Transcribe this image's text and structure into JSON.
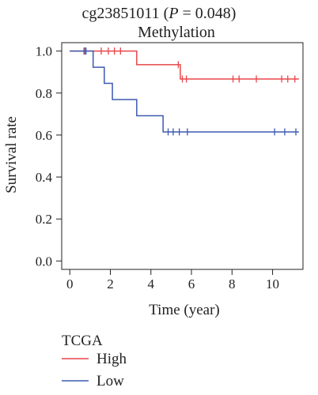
{
  "chart_data": {
    "type": "line",
    "title_prefix": "cg23851011 (",
    "title_p": "P",
    "title_suffix": " = 0.048)",
    "subtitle": "Methylation",
    "xlabel": "Time (year)",
    "ylabel": "Survival rate",
    "xlim": [
      -0.4,
      11.5
    ],
    "ylim": [
      -0.04,
      1.04
    ],
    "xticks": [
      0,
      2,
      4,
      6,
      8,
      10
    ],
    "yticks": [
      0.0,
      0.2,
      0.4,
      0.6,
      0.8,
      1.0
    ],
    "xtick_labels": [
      "0",
      "2",
      "4",
      "6",
      "8",
      "10"
    ],
    "ytick_labels": [
      "0.0",
      "0.2",
      "0.4",
      "0.6",
      "0.8",
      "1.0"
    ],
    "grid": false,
    "legend": {
      "title": "TCGA",
      "placement": "bottom-left"
    },
    "series": [
      {
        "name": "High",
        "color": "#e8474a",
        "steps": [
          [
            0,
            1.0
          ],
          [
            3.3,
            0.935
          ],
          [
            5.45,
            0.867
          ],
          [
            11.3,
            0.867
          ]
        ],
        "censor": [
          [
            0.75,
            1.0
          ],
          [
            1.55,
            1.0
          ],
          [
            1.9,
            1.0
          ],
          [
            2.2,
            1.0
          ],
          [
            2.5,
            1.0
          ],
          [
            5.35,
            0.935
          ],
          [
            5.55,
            0.867
          ],
          [
            5.75,
            0.867
          ],
          [
            8.05,
            0.867
          ],
          [
            8.35,
            0.867
          ],
          [
            9.2,
            0.867
          ],
          [
            10.45,
            0.867
          ],
          [
            10.75,
            0.867
          ],
          [
            11.1,
            0.867
          ]
        ]
      },
      {
        "name": "Low",
        "color": "#3d5ab0",
        "steps": [
          [
            0,
            1.0
          ],
          [
            1.15,
            0.923
          ],
          [
            1.7,
            0.846
          ],
          [
            2.1,
            0.769
          ],
          [
            3.3,
            0.692
          ],
          [
            4.6,
            0.615
          ],
          [
            11.3,
            0.615
          ]
        ],
        "censor": [
          [
            0.7,
            1.0
          ],
          [
            0.8,
            1.0
          ],
          [
            4.85,
            0.615
          ],
          [
            5.1,
            0.615
          ],
          [
            5.4,
            0.615
          ],
          [
            5.8,
            0.615
          ],
          [
            10.1,
            0.615
          ],
          [
            10.6,
            0.615
          ],
          [
            11.15,
            0.615
          ]
        ]
      }
    ]
  }
}
